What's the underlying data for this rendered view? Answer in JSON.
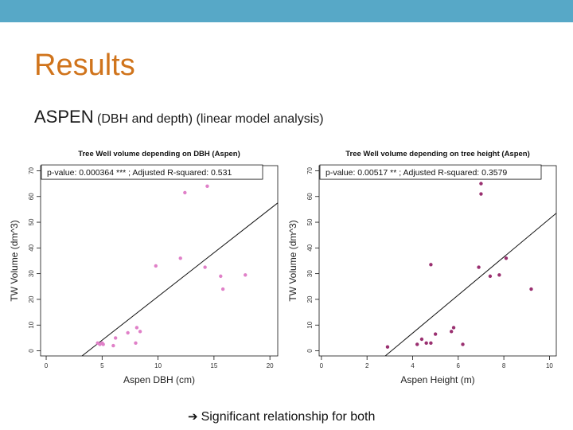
{
  "slide": {
    "title": "Results",
    "subtitle_main": "ASPEN",
    "subtitle_detail": "(DBH and depth) (linear model analysis)",
    "footnote": "Significant relationship for both",
    "arrow_icon": "right-arrow-icon"
  },
  "colors": {
    "topbar": "#57a8c7",
    "title": "#d0741c",
    "points_dbh": "#e080c8",
    "points_height": "#9a3070"
  },
  "chart_data": [
    {
      "type": "scatter",
      "title": "Tree Well volume depending on DBH (Aspen)",
      "xlabel": "Aspen DBH (cm)",
      "ylabel": "TW Volume (dm^3)",
      "xlim": [
        -0.5,
        20.7
      ],
      "ylim": [
        -2,
        72
      ],
      "xticks": [
        0,
        5,
        10,
        15,
        20
      ],
      "yticks": [
        0,
        10,
        20,
        30,
        40,
        50,
        60,
        70
      ],
      "annotation": "p-value: 0.000364 *** ; Adjusted R-squared:  0.531",
      "points": [
        {
          "x": 4.6,
          "y": 3
        },
        {
          "x": 4.8,
          "y": 2.5
        },
        {
          "x": 5.0,
          "y": 3
        },
        {
          "x": 5.1,
          "y": 2.5
        },
        {
          "x": 6.0,
          "y": 2
        },
        {
          "x": 6.2,
          "y": 5
        },
        {
          "x": 7.3,
          "y": 7
        },
        {
          "x": 8.0,
          "y": 3
        },
        {
          "x": 8.1,
          "y": 9
        },
        {
          "x": 8.4,
          "y": 7.5
        },
        {
          "x": 9.8,
          "y": 33
        },
        {
          "x": 12.0,
          "y": 36
        },
        {
          "x": 12.4,
          "y": 61.5
        },
        {
          "x": 14.2,
          "y": 32.5
        },
        {
          "x": 14.4,
          "y": 64
        },
        {
          "x": 15.6,
          "y": 29
        },
        {
          "x": 15.8,
          "y": 24
        },
        {
          "x": 17.8,
          "y": 29.5
        }
      ],
      "fit_line": {
        "x": [
          3.2,
          20.7
        ],
        "y": [
          -2,
          57.5
        ]
      }
    },
    {
      "type": "scatter",
      "title": "Tree Well volume depending on tree height (Aspen)",
      "xlabel": "Aspen Height (m)",
      "ylabel": "TW Volume (dm^3)",
      "xlim": [
        -0.1,
        10.3
      ],
      "ylim": [
        -2,
        72
      ],
      "xticks": [
        0,
        2,
        4,
        6,
        8,
        10
      ],
      "yticks": [
        0,
        10,
        20,
        30,
        40,
        50,
        60,
        70
      ],
      "annotation": "p-value: 0.00517 ** ; Adjusted R-squared: 0.3579",
      "points": [
        {
          "x": 2.9,
          "y": 1.5
        },
        {
          "x": 4.2,
          "y": 2.5
        },
        {
          "x": 4.4,
          "y": 4.5
        },
        {
          "x": 4.6,
          "y": 3
        },
        {
          "x": 4.8,
          "y": 3
        },
        {
          "x": 4.8,
          "y": 33.5
        },
        {
          "x": 5.0,
          "y": 6.5
        },
        {
          "x": 5.7,
          "y": 7.5
        },
        {
          "x": 5.8,
          "y": 9
        },
        {
          "x": 6.2,
          "y": 2.5
        },
        {
          "x": 6.9,
          "y": 32.5
        },
        {
          "x": 7.0,
          "y": 65
        },
        {
          "x": 7.0,
          "y": 61
        },
        {
          "x": 7.4,
          "y": 29
        },
        {
          "x": 7.8,
          "y": 29.5
        },
        {
          "x": 8.1,
          "y": 36
        },
        {
          "x": 9.2,
          "y": 24
        }
      ],
      "fit_line": {
        "x": [
          2.8,
          10.3
        ],
        "y": [
          -2,
          53.5
        ]
      }
    }
  ]
}
